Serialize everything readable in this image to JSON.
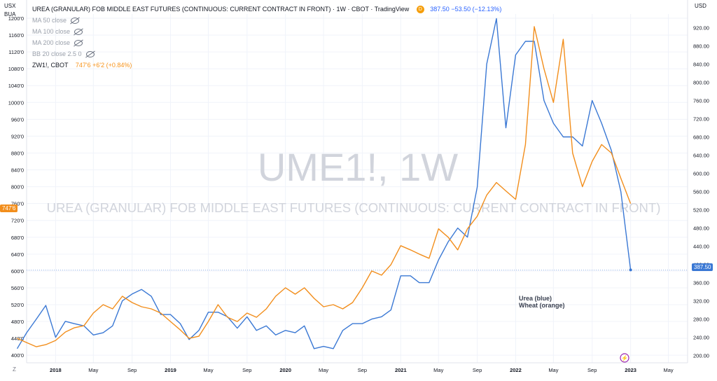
{
  "header": {
    "title": "UREA (GRANULAR) FOB MIDDLE EAST FUTURES (CONTINUOUS: CURRENT CONTRACT IN FRONT) · 1W · CBOT · TradingView",
    "badge": "D",
    "last": "387.50",
    "change": "−53.50 (−12.13%)"
  },
  "indicators": [
    {
      "label": "MA 50 close"
    },
    {
      "label": "MA 100 close"
    },
    {
      "label": "MA 200 close"
    },
    {
      "label": "BB 20 close 2.5 0"
    }
  ],
  "compare": {
    "symbol": "ZW1!, CBOT",
    "value": "747'6",
    "change": "+6'2 (+0.84%)"
  },
  "left_units": [
    "USX",
    "BUA"
  ],
  "right_unit": "USD",
  "watermark": {
    "symbol": "UME1!, 1W",
    "name": "UREA (GRANULAR) FOB MIDDLE EAST FUTURES (CONTINUOUS: CURRENT CONTRACT IN FRONT)"
  },
  "annotation": {
    "line1": "Urea (blue)",
    "line2": "Wheat (orange)"
  },
  "price_tags": {
    "left": "747'6",
    "right": "387.50"
  },
  "bottom_left": "Z",
  "colors": {
    "urea": "#3a78d4",
    "wheat": "#f28e1c",
    "tag_orange": "#f28e1c",
    "tag_blue": "#3a78d4",
    "event_marker": "#9c27b0"
  },
  "event_icon": "lightning-icon",
  "chart_data": {
    "type": "line",
    "title": "UREA (GRANULAR) FOB MIDDLE EAST FUTURES (CONTINUOUS: CURRENT CONTRACT IN FRONT) · 1W · CBOT · TradingView",
    "x_ticks": [
      "2018",
      "May",
      "Sep",
      "2019",
      "May",
      "Sep",
      "2020",
      "May",
      "Sep",
      "2021",
      "May",
      "Sep",
      "2022",
      "May",
      "Sep",
      "2023",
      "May"
    ],
    "left_axis": {
      "unit": "USX",
      "ticks": [
        "400'0",
        "440'0",
        "480'0",
        "520'0",
        "560'0",
        "600'0",
        "640'0",
        "680'0",
        "720'0",
        "760'0",
        "800'0",
        "840'0",
        "880'0",
        "920'0",
        "960'0",
        "1000'0",
        "1040'0",
        "1080'0",
        "1120'0",
        "1160'0",
        "1200'0"
      ],
      "range": [
        382,
        1210
      ]
    },
    "right_axis": {
      "unit": "USD",
      "ticks": [
        "200.00",
        "240.00",
        "280.00",
        "320.00",
        "360.00",
        "400.00",
        "440.00",
        "480.00",
        "520.00",
        "560.00",
        "600.00",
        "640.00",
        "680.00",
        "720.00",
        "760.00",
        "800.00",
        "840.00",
        "880.00",
        "920.00"
      ],
      "range": [
        184,
        950
      ]
    },
    "series": [
      {
        "name": "Urea (blue)",
        "axis": "right",
        "x": [
          "2017-09",
          "2017-10",
          "2017-11",
          "2017-12",
          "2018-01",
          "2018-02",
          "2018-03",
          "2018-04",
          "2018-05",
          "2018-06",
          "2018-07",
          "2018-08",
          "2018-09",
          "2018-10",
          "2018-11",
          "2018-12",
          "2019-01",
          "2019-02",
          "2019-03",
          "2019-04",
          "2019-05",
          "2019-06",
          "2019-07",
          "2019-08",
          "2019-09",
          "2019-10",
          "2019-11",
          "2019-12",
          "2020-01",
          "2020-02",
          "2020-03",
          "2020-04",
          "2020-05",
          "2020-06",
          "2020-07",
          "2020-08",
          "2020-09",
          "2020-10",
          "2020-11",
          "2020-12",
          "2021-01",
          "2021-02",
          "2021-03",
          "2021-04",
          "2021-05",
          "2021-06",
          "2021-07",
          "2021-08",
          "2021-09",
          "2021-10",
          "2021-11",
          "2021-12",
          "2022-01",
          "2022-02",
          "2022-03",
          "2022-04",
          "2022-05",
          "2022-06",
          "2022-07",
          "2022-08",
          "2022-09",
          "2022-10",
          "2022-11",
          "2022-12",
          "2023-01"
        ],
        "y": [
          215,
          250,
          280,
          310,
          240,
          275,
          270,
          265,
          245,
          250,
          265,
          320,
          335,
          345,
          330,
          290,
          290,
          270,
          235,
          255,
          295,
          295,
          285,
          260,
          285,
          255,
          265,
          245,
          255,
          250,
          265,
          215,
          220,
          215,
          255,
          270,
          270,
          280,
          285,
          300,
          375,
          375,
          360,
          360,
          410,
          450,
          480,
          460,
          570,
          840,
          940,
          700,
          860,
          890,
          890,
          760,
          710,
          680,
          680,
          660,
          760,
          710,
          650,
          560,
          388
        ]
      },
      {
        "name": "Wheat (orange)",
        "axis": "left",
        "x": [
          "2017-09",
          "2017-10",
          "2017-11",
          "2017-12",
          "2018-01",
          "2018-02",
          "2018-03",
          "2018-04",
          "2018-05",
          "2018-06",
          "2018-07",
          "2018-08",
          "2018-09",
          "2018-10",
          "2018-11",
          "2018-12",
          "2019-01",
          "2019-02",
          "2019-03",
          "2019-04",
          "2019-05",
          "2019-06",
          "2019-07",
          "2019-08",
          "2019-09",
          "2019-10",
          "2019-11",
          "2019-12",
          "2020-01",
          "2020-02",
          "2020-03",
          "2020-04",
          "2020-05",
          "2020-06",
          "2020-07",
          "2020-08",
          "2020-09",
          "2020-10",
          "2020-11",
          "2020-12",
          "2021-01",
          "2021-02",
          "2021-03",
          "2021-04",
          "2021-05",
          "2021-06",
          "2021-07",
          "2021-08",
          "2021-09",
          "2021-10",
          "2021-11",
          "2021-12",
          "2022-01",
          "2022-02",
          "2022-03",
          "2022-04",
          "2022-05",
          "2022-06",
          "2022-07",
          "2022-08",
          "2022-09",
          "2022-10",
          "2022-11",
          "2022-12",
          "2023-01"
        ],
        "y": [
          440,
          430,
          420,
          425,
          435,
          455,
          465,
          470,
          500,
          520,
          510,
          540,
          525,
          515,
          510,
          500,
          480,
          460,
          440,
          445,
          480,
          520,
          490,
          480,
          500,
          490,
          510,
          540,
          560,
          545,
          560,
          535,
          515,
          520,
          510,
          525,
          560,
          600,
          590,
          615,
          660,
          650,
          640,
          630,
          700,
          680,
          650,
          700,
          730,
          780,
          810,
          790,
          770,
          900,
          1180,
          1080,
          1000,
          1150,
          880,
          800,
          860,
          900,
          880,
          820,
          760
        ]
      }
    ],
    "xlabel": "",
    "ylabel": "",
    "grid": true,
    "legend": "top-left"
  }
}
